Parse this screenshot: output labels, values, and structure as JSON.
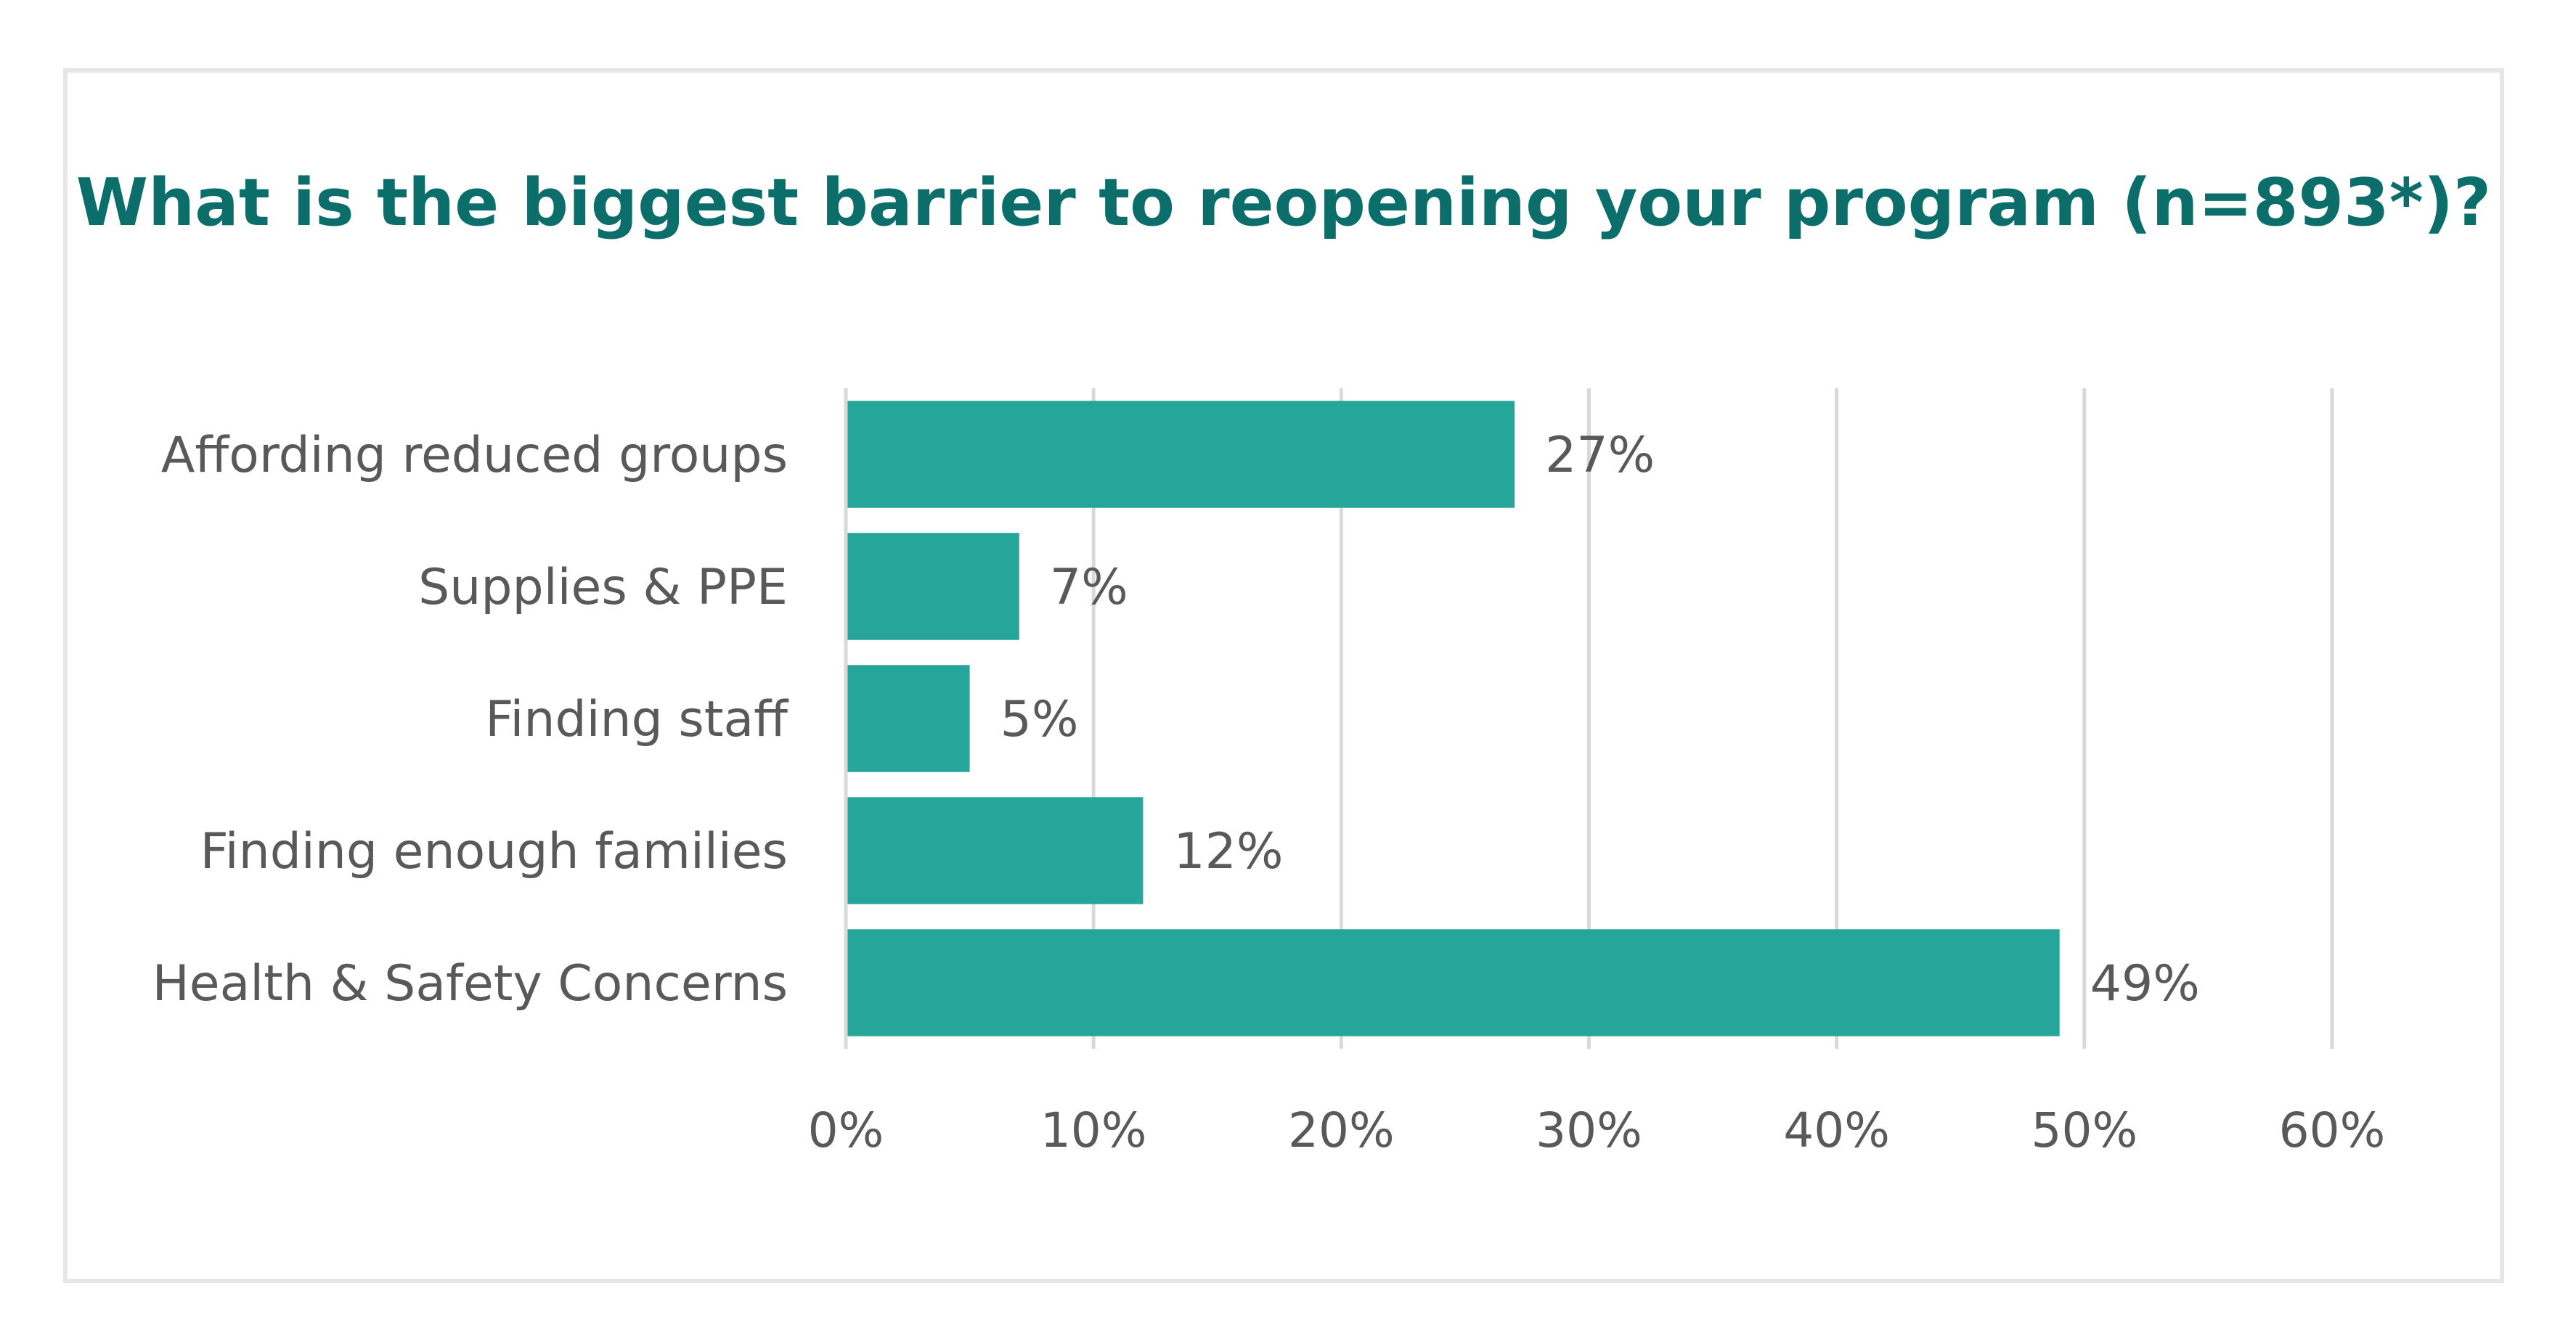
{
  "chart_data": {
    "type": "bar",
    "orientation": "horizontal",
    "title": "What is the biggest barrier to reopening your program (n=893*)?",
    "categories": [
      "Affording reduced groups",
      "Supplies & PPE",
      "Finding staff",
      "Finding enough families",
      "Health & Safety Concerns"
    ],
    "values": [
      27,
      7,
      5,
      12,
      49
    ],
    "data_labels": [
      "27%",
      "7%",
      "5%",
      "12%",
      "49%"
    ],
    "xlim": [
      0,
      60
    ],
    "x_ticks": [
      0,
      10,
      20,
      30,
      40,
      50,
      60
    ],
    "x_tick_labels": [
      "0%",
      "10%",
      "20%",
      "30%",
      "40%",
      "50%",
      "60%"
    ],
    "xlabel": "",
    "ylabel": "",
    "grid": true,
    "legend": "none",
    "colors": {
      "bar": "#26a69a",
      "title": "#0b6e6a",
      "text": "#595959",
      "grid": "#d9d9d9",
      "frame": "#e6e6e6"
    }
  }
}
